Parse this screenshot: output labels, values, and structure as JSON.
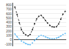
{
  "chart_data": {
    "type": "line",
    "categories": [
      null,
      null,
      null,
      null,
      null,
      null,
      null,
      null,
      null,
      null,
      null,
      null,
      null,
      null,
      null,
      null,
      null,
      null,
      null,
      null,
      null,
      null,
      null,
      null
    ],
    "series": [
      {
        "color": "#1a1a1a",
        "line_style": "dotted",
        "marker": "circle",
        "values": [
          750,
          580,
          390,
          230,
          150,
          110,
          90,
          120,
          230,
          370,
          480,
          540,
          560,
          510,
          440,
          380,
          330,
          300,
          290,
          300,
          360,
          470,
          590,
          650
        ]
      },
      {
        "color": "#5bb8f5",
        "line_style": "dashed",
        "marker": "circle",
        "values": [
          130,
          70,
          10,
          -30,
          -60,
          -90,
          -110,
          -115,
          -75,
          -20,
          30,
          80,
          100,
          90,
          65,
          45,
          30,
          25,
          25,
          35,
          55,
          85,
          120,
          145
        ]
      }
    ],
    "ylim": [
      -150,
      850
    ],
    "yticks": [
      -100,
      0,
      100,
      200,
      300,
      400,
      500,
      600,
      700,
      800
    ],
    "grid": true,
    "tick_labels": "y"
  }
}
